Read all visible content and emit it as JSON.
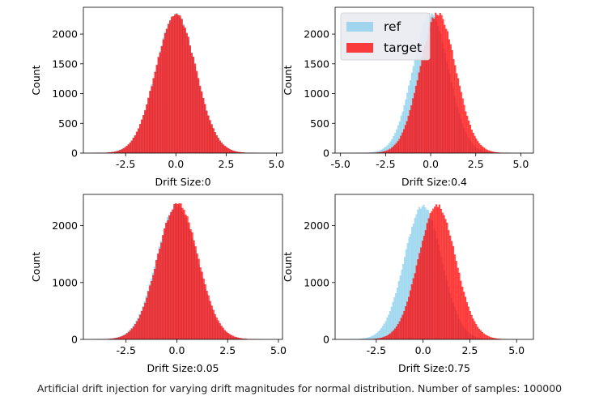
{
  "caption": "Artificial drift injection for varying drift magnitudes for normal distribution. Number of samples: 100000",
  "colors": {
    "ref": "#87ceeb",
    "target": "#ff0000"
  },
  "legend": {
    "entries": [
      "ref",
      "target"
    ],
    "placement": "upper-left of top-right panel"
  },
  "chart_data": [
    {
      "type": "bar",
      "subtype": "histogram",
      "xlabel": "Drift Size:0",
      "ylabel": "Count",
      "drift": 0,
      "xlim": [
        -4.6,
        5.3
      ],
      "ylim": [
        0,
        2450
      ],
      "xticks": [
        "-2.5",
        "0.0",
        "2.5",
        "5.0"
      ],
      "xtick_values": [
        -2.5,
        0,
        2.5,
        5.0
      ],
      "yticks": [
        "0",
        "500",
        "1000",
        "1500",
        "2000"
      ],
      "ytick_values": [
        0,
        500,
        1000,
        1500,
        2000
      ],
      "series": [
        {
          "name": "ref",
          "distribution": "normal",
          "mean": 0,
          "std": 1,
          "peak_count": 2330,
          "support": [
            -4.3,
            4.8
          ]
        },
        {
          "name": "target",
          "distribution": "normal",
          "mean": 0,
          "std": 1,
          "peak_count": 2330,
          "support": [
            -4.3,
            4.8
          ]
        }
      ]
    },
    {
      "type": "bar",
      "subtype": "histogram",
      "xlabel": "Drift Size:0.4",
      "ylabel": "Count",
      "drift": 0.4,
      "xlim": [
        -5.3,
        5.7
      ],
      "ylim": [
        0,
        2450
      ],
      "xticks": [
        "-5.0",
        "-2.5",
        "0.0",
        "2.5",
        "5.0"
      ],
      "xtick_values": [
        -5.0,
        -2.5,
        0,
        2.5,
        5.0
      ],
      "yticks": [
        "0",
        "500",
        "1000",
        "1500",
        "2000"
      ],
      "ytick_values": [
        0,
        500,
        1000,
        1500,
        2000
      ],
      "series": [
        {
          "name": "ref",
          "distribution": "normal",
          "mean": 0,
          "std": 1,
          "peak_count": 2330,
          "support": [
            -4.8,
            4.5
          ]
        },
        {
          "name": "target",
          "distribution": "normal",
          "mean": 0.4,
          "std": 1,
          "peak_count": 2340,
          "support": [
            -4.2,
            5.0
          ]
        }
      ]
    },
    {
      "type": "bar",
      "subtype": "histogram",
      "xlabel": "Drift Size:0.05",
      "ylabel": "Count",
      "drift": 0.05,
      "xlim": [
        -4.6,
        5.2
      ],
      "ylim": [
        0,
        2550
      ],
      "xticks": [
        "-2.5",
        "0.0",
        "2.5",
        "5.0"
      ],
      "xtick_values": [
        -2.5,
        0,
        2.5,
        5.0
      ],
      "yticks": [
        "0",
        "1000",
        "2000"
      ],
      "ytick_values": [
        0,
        1000,
        2000
      ],
      "series": [
        {
          "name": "ref",
          "distribution": "normal",
          "mean": 0,
          "std": 1,
          "peak_count": 2360,
          "support": [
            -4.3,
            4.6
          ]
        },
        {
          "name": "target",
          "distribution": "normal",
          "mean": 0.05,
          "std": 1,
          "peak_count": 2380,
          "support": [
            -4.0,
            4.8
          ]
        }
      ]
    },
    {
      "type": "bar",
      "subtype": "histogram",
      "xlabel": "Drift Size:0.75",
      "ylabel": "Count",
      "drift": 0.75,
      "xlim": [
        -4.7,
        5.9
      ],
      "ylim": [
        0,
        2550
      ],
      "xticks": [
        "-2.5",
        "0.0",
        "2.5",
        "5.0"
      ],
      "xtick_values": [
        -2.5,
        0,
        2.5,
        5.0
      ],
      "yticks": [
        "0",
        "1000",
        "2000"
      ],
      "ytick_values": [
        0,
        1000,
        2000
      ],
      "series": [
        {
          "name": "ref",
          "distribution": "normal",
          "mean": 0,
          "std": 1,
          "peak_count": 2340,
          "support": [
            -4.3,
            4.3
          ]
        },
        {
          "name": "target",
          "distribution": "normal",
          "mean": 0.75,
          "std": 1,
          "peak_count": 2350,
          "support": [
            -3.5,
            5.5
          ]
        }
      ]
    }
  ]
}
